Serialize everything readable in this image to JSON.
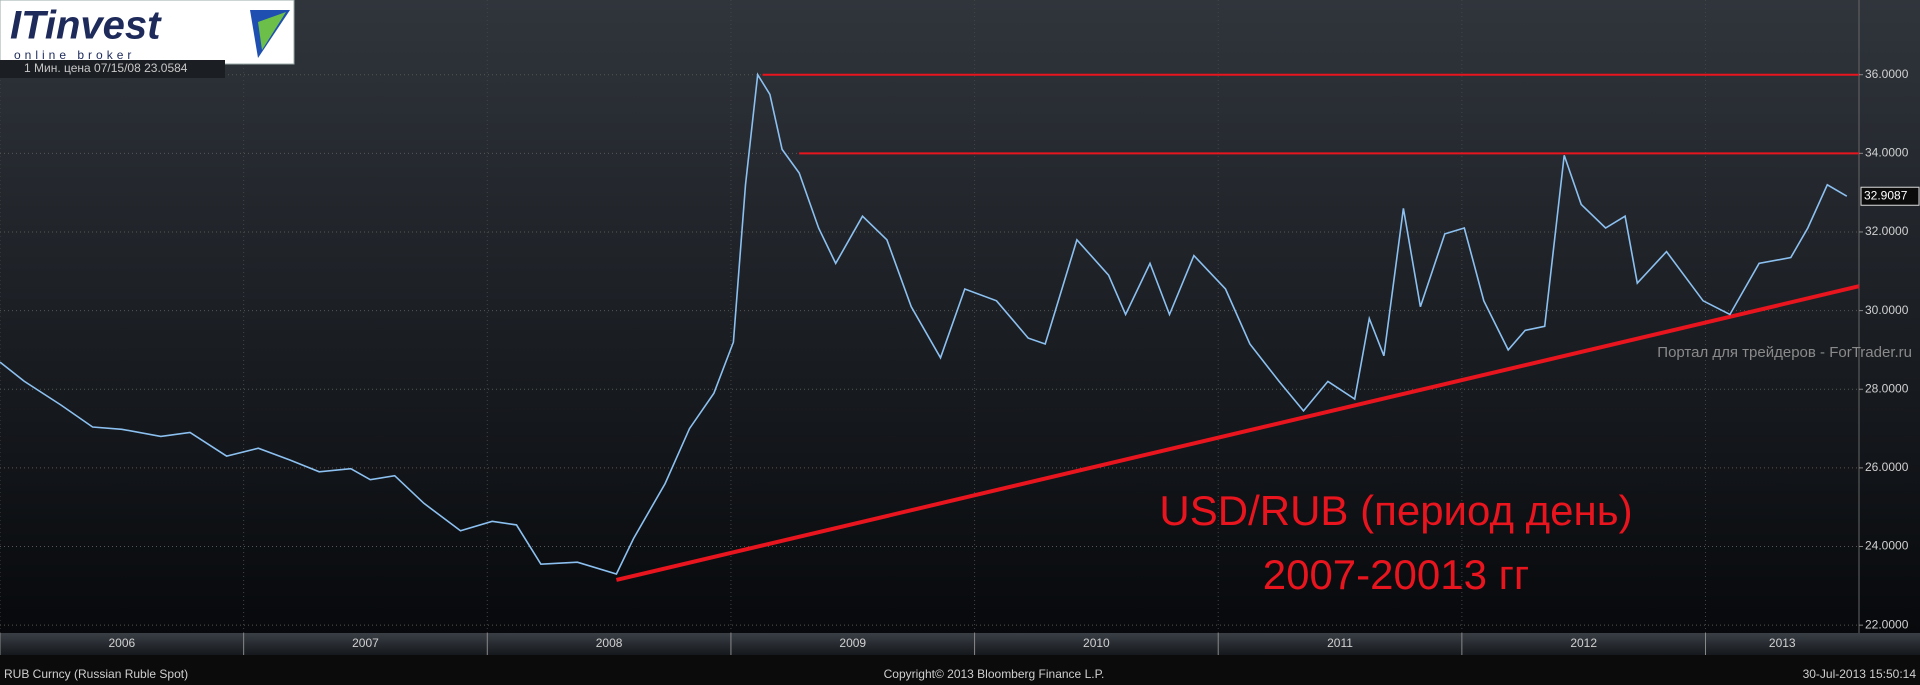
{
  "chart_data": {
    "type": "line",
    "x": [
      2006.0,
      2006.1,
      2006.25,
      2006.38,
      2006.5,
      2006.66,
      2006.78,
      2006.93,
      2007.06,
      2007.19,
      2007.31,
      2007.44,
      2007.52,
      2007.62,
      2007.74,
      2007.89,
      2008.02,
      2008.12,
      2008.22,
      2008.37,
      2008.53,
      2008.6,
      2008.73,
      2008.83,
      2008.93,
      2009.01,
      2009.06,
      2009.11,
      2009.16,
      2009.21,
      2009.28,
      2009.36,
      2009.43,
      2009.54,
      2009.64,
      2009.74,
      2009.86,
      2009.96,
      2010.09,
      2010.22,
      2010.29,
      2010.42,
      2010.55,
      2010.62,
      2010.72,
      2010.8,
      2010.9,
      2011.03,
      2011.13,
      2011.25,
      2011.35,
      2011.45,
      2011.56,
      2011.62,
      2011.68,
      2011.76,
      2011.83,
      2011.93,
      2012.01,
      2012.09,
      2012.19,
      2012.26,
      2012.34,
      2012.42,
      2012.49,
      2012.59,
      2012.67,
      2012.72,
      2012.84,
      2012.99,
      2013.1,
      2013.22,
      2013.35,
      2013.42,
      2013.5,
      2013.58
    ],
    "series": [
      {
        "color": "#8cc0f0",
        "values": [
          28.69,
          28.2,
          27.6,
          27.04,
          26.98,
          26.8,
          26.9,
          26.3,
          26.5,
          26.2,
          25.9,
          25.98,
          25.7,
          25.8,
          25.1,
          24.4,
          24.64,
          24.55,
          23.55,
          23.6,
          23.3,
          24.2,
          25.6,
          27.0,
          27.9,
          29.2,
          33.2,
          36.0,
          35.5,
          34.1,
          33.5,
          32.1,
          31.2,
          32.4,
          31.8,
          30.1,
          28.8,
          30.55,
          30.25,
          29.3,
          29.15,
          31.8,
          30.9,
          29.9,
          31.2,
          29.9,
          31.4,
          30.55,
          29.15,
          28.2,
          27.45,
          28.2,
          27.75,
          29.8,
          28.85,
          32.6,
          30.1,
          31.95,
          32.1,
          30.25,
          29.0,
          29.5,
          29.6,
          33.95,
          32.7,
          32.1,
          32.4,
          30.7,
          31.5,
          30.25,
          29.9,
          31.2,
          31.35,
          32.1,
          33.2,
          32.9087
        ]
      }
    ],
    "xlim": [
      2006,
      2013.63
    ],
    "ylim": [
      21.8,
      37.9
    ],
    "xticks": [
      {
        "value": 2006,
        "label": "2006"
      },
      {
        "value": 2007,
        "label": "2007"
      },
      {
        "value": 2008,
        "label": "2008"
      },
      {
        "value": 2009,
        "label": "2009"
      },
      {
        "value": 2010,
        "label": "2010"
      },
      {
        "value": 2011,
        "label": "2011"
      },
      {
        "value": 2012,
        "label": "2012"
      },
      {
        "value": 2013,
        "label": "2013"
      }
    ],
    "yticks": [
      {
        "value": 22,
        "label": "22.0000"
      },
      {
        "value": 24,
        "label": "24.0000"
      },
      {
        "value": 26,
        "label": "26.0000"
      },
      {
        "value": 28,
        "label": "28.0000"
      },
      {
        "value": 30,
        "label": "30.0000"
      },
      {
        "value": 32,
        "label": "32.0000"
      },
      {
        "value": 34,
        "label": "34.0000"
      },
      {
        "value": 36,
        "label": "36.0000"
      }
    ],
    "grid": true,
    "line_color": "#e8141e",
    "hlines": [
      {
        "y": 36,
        "x0": 2009.13
      },
      {
        "y": 34,
        "x0": 2009.28
      }
    ],
    "trendline": {
      "x": [
        2008.53,
        2013.63
      ],
      "y": [
        23.15,
        30.62
      ]
    },
    "annotations": [
      "USD/RUB (период день)",
      "2007-20013 гг"
    ],
    "legend_text": "1 Мин. цена 07/15/08 23.0584",
    "watermark": "Портал для трейдеров - ForTrader.ru",
    "footer": {
      "left": "RUB Curncy (Russian Ruble Spot)",
      "center": "Copyright© 2013 Bloomberg Finance L.P.",
      "right": "30-Jul-2013 15:50:14"
    }
  },
  "logo": {
    "name": "ITinvest",
    "tagline": "online broker"
  }
}
